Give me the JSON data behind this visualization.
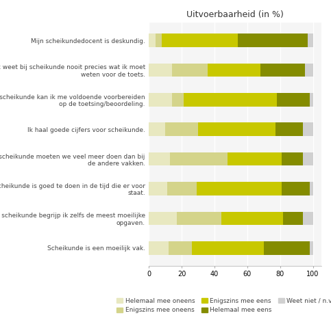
{
  "title": "Uitvoerbaarheid (in %)",
  "categories": [
    "Mijn scheikundedocent is deskundig.",
    "Ik weet bij scheikunde nooit precies wat ik moet\nweten voor de toets.",
    "Bij scheikunde kan ik me voldoende voorbereiden\nop de toetsing/beoordeling.",
    "Ik haal goede cijfers voor scheikunde.",
    "Bij scheikunde moeten we veel meer doen dan bij\nde andere vakken.",
    "Scheikunde is goed te doen in de tijd die er voor\nstaat.",
    "Bij scheikunde begrijp ik zelfs de meest moeilijke\nopgaven.",
    "Scheikunde is een moeilijk vak."
  ],
  "series": {
    "Helemaal mee oneens": [
      4,
      14,
      14,
      10,
      13,
      11,
      17,
      12
    ],
    "Enigszins mee oneens": [
      4,
      22,
      7,
      20,
      35,
      18,
      27,
      14
    ],
    "Enigszins mee eens": [
      46,
      32,
      57,
      47,
      33,
      52,
      38,
      44
    ],
    "Helemaal mee eens": [
      43,
      27,
      20,
      17,
      13,
      17,
      12,
      28
    ],
    "Weet niet / n.v.t": [
      3,
      5,
      2,
      6,
      6,
      2,
      6,
      2
    ]
  },
  "colors": {
    "Helemaal mee oneens": "#e8e8c0",
    "Enigszins mee oneens": "#d4d48a",
    "Enigszins mee eens": "#c8c800",
    "Helemaal mee eens": "#848c00",
    "Weet niet / n.v.t": "#d0d0d0"
  },
  "legend_order": [
    "Helemaal mee oneens",
    "Enigszins mee oneens",
    "Enigszins mee eens",
    "Helemaal mee eens",
    "Weet niet / n.v.t"
  ],
  "legend_layout": [
    [
      "Helemaal mee oneens",
      "Enigszins mee oneens",
      "Enigszins mee eens"
    ],
    [
      "Helemaal mee eens",
      "Weet niet / n.v.t"
    ]
  ],
  "xlim": [
    0,
    105
  ],
  "xticks": [
    0,
    20,
    40,
    60,
    80,
    100
  ],
  "bar_height": 0.45,
  "figsize": [
    4.83,
    4.74
  ],
  "dpi": 100,
  "bg_color": "#f5f5f5",
  "grid_color": "#ffffff",
  "title_fontsize": 9,
  "label_fontsize": 6.5,
  "tick_fontsize": 7,
  "legend_fontsize": 6.5
}
